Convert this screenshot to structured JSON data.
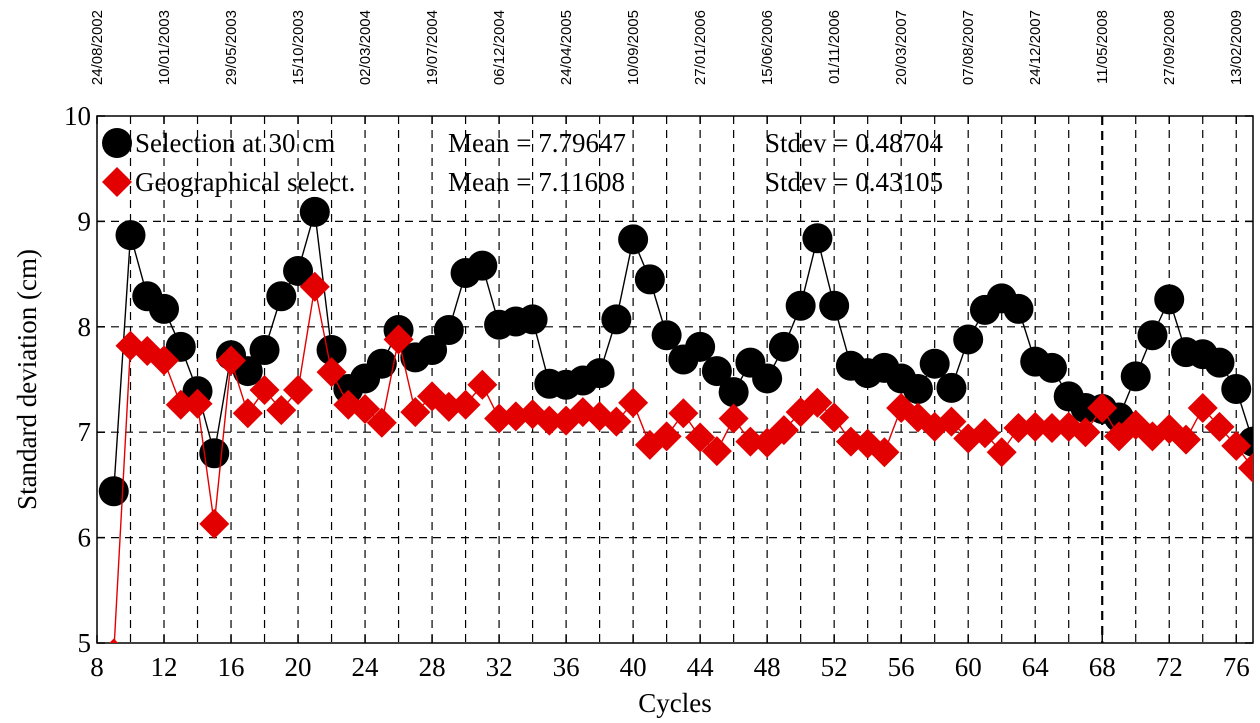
{
  "chart_data": {
    "type": "line",
    "xlabel": "Cycles",
    "ylabel": "Standard deviation (cm)",
    "xlim": [
      8,
      77
    ],
    "ylim": [
      5,
      10
    ],
    "x_ticks": [
      8,
      12,
      16,
      20,
      24,
      28,
      32,
      36,
      40,
      44,
      48,
      52,
      56,
      60,
      64,
      68,
      72,
      76
    ],
    "y_ticks": [
      5,
      6,
      7,
      8,
      9,
      10
    ],
    "grid": true,
    "legend_position": "top-left",
    "top_axis_dates": [
      {
        "cycle": 8,
        "label": "24/08/2002"
      },
      {
        "cycle": 12,
        "label": "10/01/2003"
      },
      {
        "cycle": 16,
        "label": "29/05/2003"
      },
      {
        "cycle": 20,
        "label": "15/10/2003"
      },
      {
        "cycle": 24,
        "label": "02/03/2004"
      },
      {
        "cycle": 28,
        "label": "19/07/2004"
      },
      {
        "cycle": 32,
        "label": "06/12/2004"
      },
      {
        "cycle": 36,
        "label": "24/04/2005"
      },
      {
        "cycle": 40,
        "label": "10/09/2005"
      },
      {
        "cycle": 44,
        "label": "27/01/2006"
      },
      {
        "cycle": 48,
        "label": "15/06/2006"
      },
      {
        "cycle": 52,
        "label": "01/11/2006"
      },
      {
        "cycle": 56,
        "label": "20/03/2007"
      },
      {
        "cycle": 60,
        "label": "07/08/2007"
      },
      {
        "cycle": 64,
        "label": "24/12/2007"
      },
      {
        "cycle": 68,
        "label": "11/05/2008"
      },
      {
        "cycle": 72,
        "label": "27/09/2008"
      },
      {
        "cycle": 76,
        "label": "13/02/2009"
      }
    ],
    "series": [
      {
        "name": "Selection at 30 cm",
        "color": "#000000",
        "marker": "circle",
        "mean_text": "Mean = 7.79647",
        "stdev_text": "Stdev = 0.48704",
        "x": [
          9,
          10,
          11,
          12,
          13,
          14,
          15,
          16,
          17,
          18,
          19,
          20,
          21,
          22,
          23,
          24,
          25,
          26,
          27,
          28,
          29,
          30,
          31,
          32,
          33,
          34,
          35,
          36,
          37,
          38,
          39,
          40,
          41,
          42,
          43,
          44,
          45,
          46,
          47,
          48,
          49,
          50,
          51,
          52,
          53,
          54,
          55,
          56,
          57,
          58,
          59,
          60,
          61,
          62,
          63,
          64,
          65,
          66,
          67,
          68,
          69,
          70,
          71,
          72,
          73,
          74,
          75,
          76,
          77
        ],
        "y": [
          6.44,
          8.87,
          8.29,
          8.17,
          7.81,
          7.39,
          6.8,
          7.73,
          7.58,
          7.78,
          8.29,
          8.53,
          9.09,
          7.78,
          7.41,
          7.51,
          7.65,
          7.97,
          7.71,
          7.78,
          7.97,
          8.51,
          8.58,
          8.02,
          8.05,
          8.07,
          7.46,
          7.45,
          7.49,
          7.56,
          8.07,
          8.83,
          8.45,
          7.92,
          7.69,
          7.81,
          7.58,
          7.38,
          7.66,
          7.51,
          7.81,
          8.2,
          8.84,
          8.2,
          7.63,
          7.56,
          7.61,
          7.51,
          7.41,
          7.65,
          7.42,
          7.88,
          8.16,
          8.27,
          8.17,
          7.67,
          7.61,
          7.34,
          7.23,
          7.22,
          7.14,
          7.53,
          7.92,
          8.26,
          7.76,
          7.74,
          7.66,
          7.41,
          6.91
        ]
      },
      {
        "name": "Geographical select.",
        "color": "#e30000",
        "marker": "diamond",
        "mean_text": "Mean = 7.11608",
        "stdev_text": "Stdev = 0.43105",
        "x": [
          9,
          10,
          11,
          12,
          13,
          14,
          15,
          16,
          17,
          18,
          19,
          20,
          21,
          22,
          23,
          24,
          25,
          26,
          27,
          28,
          29,
          30,
          31,
          32,
          33,
          34,
          35,
          36,
          37,
          38,
          39,
          40,
          41,
          42,
          43,
          44,
          45,
          46,
          47,
          48,
          49,
          50,
          51,
          52,
          53,
          54,
          55,
          56,
          57,
          58,
          59,
          60,
          61,
          62,
          63,
          64,
          65,
          66,
          67,
          68,
          69,
          70,
          71,
          72,
          73,
          74,
          75,
          76,
          77
        ],
        "y": [
          4.9,
          7.82,
          7.77,
          7.68,
          7.26,
          7.27,
          6.13,
          7.68,
          7.18,
          7.4,
          7.21,
          7.4,
          8.38,
          7.57,
          7.26,
          7.22,
          7.09,
          7.88,
          7.19,
          7.34,
          7.24,
          7.26,
          7.45,
          7.13,
          7.15,
          7.17,
          7.11,
          7.11,
          7.19,
          7.15,
          7.1,
          7.28,
          6.88,
          6.96,
          7.18,
          6.95,
          6.82,
          7.13,
          6.91,
          6.9,
          7.02,
          7.19,
          7.28,
          7.14,
          6.91,
          6.89,
          6.81,
          7.23,
          7.14,
          7.05,
          7.1,
          6.94,
          6.99,
          6.81,
          7.04,
          7.05,
          7.04,
          7.05,
          7.0,
          7.23,
          6.96,
          7.07,
          6.96,
          7.03,
          6.93,
          7.23,
          7.05,
          6.87,
          6.66
        ]
      }
    ]
  }
}
